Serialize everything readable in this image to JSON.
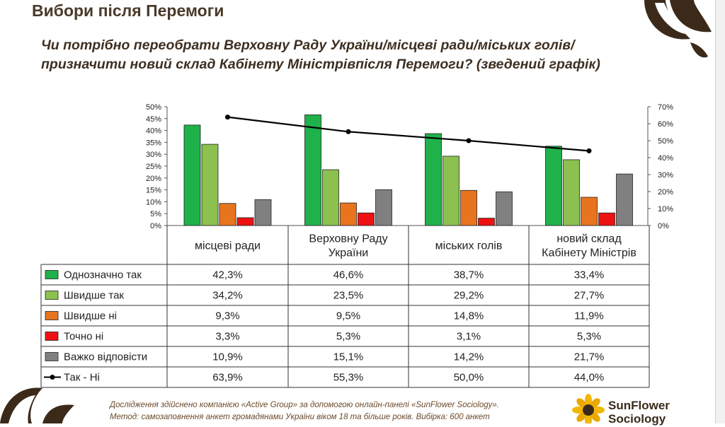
{
  "page": {
    "title": "Вибори після Перемоги",
    "question": "Чи потрібно переобрати Верховну Раду України/місцеві ради/міських голів/призначити новий склад Кабінету Міністрівпісля Перемоги? (зведений графік)",
    "footer_line1": "Дослідження здійснено компанією «Active Group» за допомогою онлайн-панелі «SunFlower Sociology».",
    "footer_line2": "Метод: самозаповнення анкет громадянами України віком 18 та більше років. Вибірка: 600 анкет",
    "brand_line1": "SunFlower",
    "brand_line2": "Sociology"
  },
  "chart_data": {
    "type": "bar",
    "categories": [
      "місцеві ради",
      "Верховну Раду України",
      "міських голів",
      "новий склад Кабінету Міністрів"
    ],
    "series": [
      {
        "name": "Однозначно так",
        "type": "bar",
        "axis": "left",
        "color": "#1fb14a",
        "values": [
          42.3,
          46.6,
          38.7,
          33.4
        ],
        "labels": [
          "42,3%",
          "46,6%",
          "38,7%",
          "33,4%"
        ]
      },
      {
        "name": "Швидше так",
        "type": "bar",
        "axis": "left",
        "color": "#8cc04f",
        "values": [
          34.2,
          23.5,
          29.2,
          27.7
        ],
        "labels": [
          "34,2%",
          "23,5%",
          "29,2%",
          "27,7%"
        ]
      },
      {
        "name": "Швидше ні",
        "type": "bar",
        "axis": "left",
        "color": "#e8741e",
        "values": [
          9.3,
          9.5,
          14.8,
          11.9
        ],
        "labels": [
          "9,3%",
          "9,5%",
          "14,8%",
          "11,9%"
        ]
      },
      {
        "name": "Точно ні",
        "type": "bar",
        "axis": "left",
        "color": "#ee1111",
        "values": [
          3.3,
          5.3,
          3.1,
          5.3
        ],
        "labels": [
          "3,3%",
          "5,3%",
          "3,1%",
          "5,3%"
        ]
      },
      {
        "name": "Важко відповісти",
        "type": "bar",
        "axis": "left",
        "color": "#808080",
        "values": [
          10.9,
          15.1,
          14.2,
          21.7
        ],
        "labels": [
          "10,9%",
          "15,1%",
          "14,2%",
          "21,7%"
        ]
      },
      {
        "name": "Так - Ні",
        "type": "line",
        "axis": "right",
        "color": "#000000",
        "values": [
          63.9,
          55.3,
          50.0,
          44.0
        ],
        "labels": [
          "63,9%",
          "55,3%",
          "50,0%",
          "44,0%"
        ]
      }
    ],
    "left_axis": {
      "ylim": [
        0,
        50
      ],
      "ticks": [
        "0%",
        "5%",
        "10%",
        "15%",
        "20%",
        "25%",
        "30%",
        "35%",
        "40%",
        "45%",
        "50%"
      ]
    },
    "right_axis": {
      "ylim": [
        0,
        70
      ],
      "ticks": [
        "0%",
        "10%",
        "20%",
        "30%",
        "40%",
        "50%",
        "60%",
        "70%"
      ]
    },
    "grid": false,
    "legend": "data-table",
    "title": "",
    "xlabel": "",
    "ylabel": ""
  }
}
